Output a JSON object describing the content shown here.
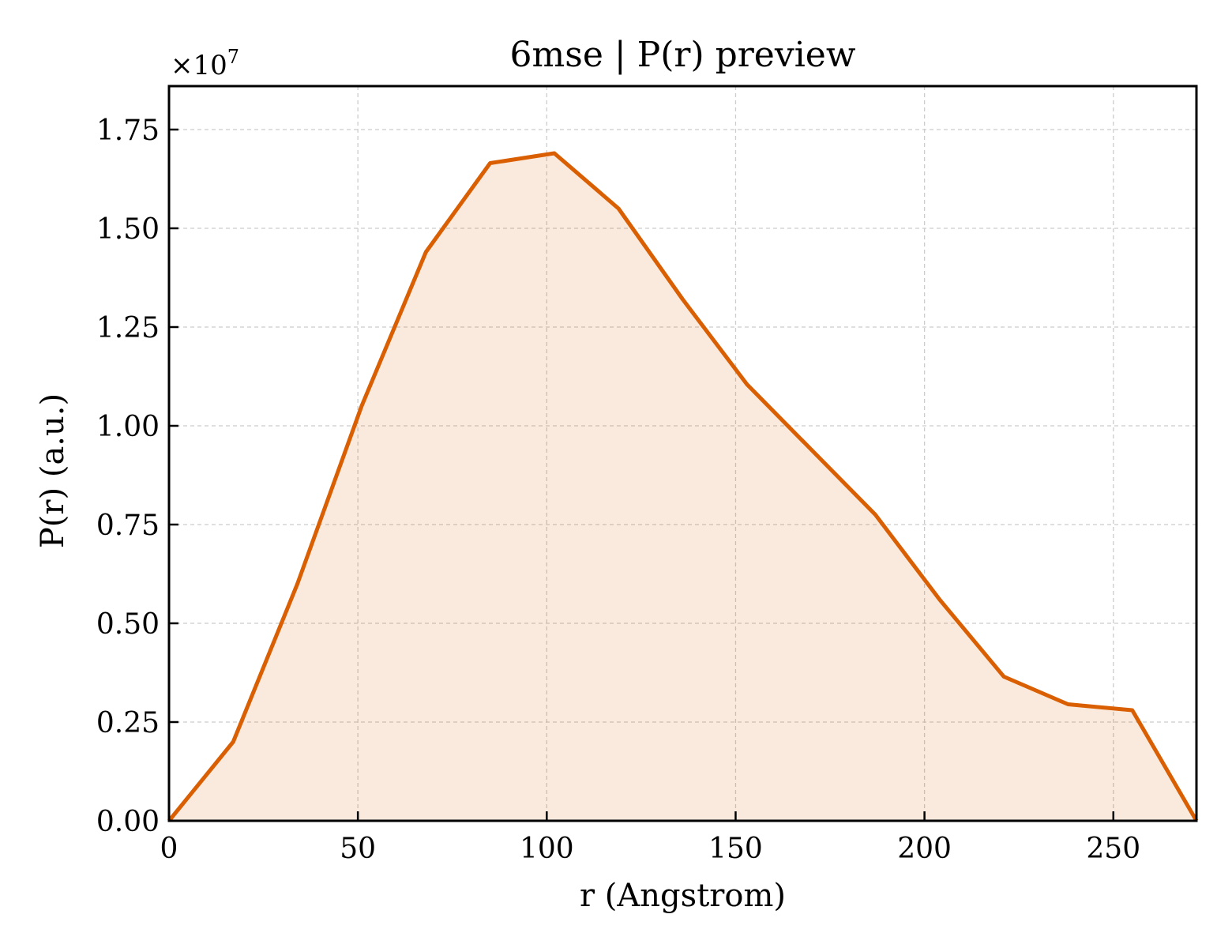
{
  "chart_data": {
    "type": "area",
    "title": "6mse | P(r) preview",
    "xlabel": "r (Angstrom)",
    "ylabel": "P(r) (a.u.)",
    "y_multiplier_label": "×10",
    "y_multiplier_exponent": "7",
    "y_multiplier": 10000000,
    "xlim": [
      0,
      272
    ],
    "ylim": [
      0,
      1.86
    ],
    "x_ticks": [
      0,
      50,
      100,
      150,
      200,
      250
    ],
    "y_ticks": [
      0.0,
      0.25,
      0.5,
      0.75,
      1.0,
      1.25,
      1.5,
      1.75
    ],
    "x_tick_labels": [
      "0",
      "50",
      "100",
      "150",
      "200",
      "250"
    ],
    "y_tick_labels": [
      "0.00",
      "0.25",
      "0.50",
      "0.75",
      "1.00",
      "1.25",
      "1.50",
      "1.75"
    ],
    "grid": true,
    "colors": {
      "line": "#d95f02",
      "fill": "#d95f02",
      "grid": "#cccccc",
      "axes": "#000000"
    },
    "series": [
      {
        "x": [
          0,
          17,
          34,
          51,
          68,
          85,
          102,
          119,
          136,
          153,
          170,
          187,
          204,
          221,
          238,
          255,
          272
        ],
        "y": [
          0.0,
          0.2,
          0.6,
          1.05,
          1.44,
          1.665,
          1.69,
          1.55,
          1.32,
          1.105,
          0.94,
          0.775,
          0.56,
          0.365,
          0.295,
          0.28,
          0.0
        ]
      }
    ]
  }
}
